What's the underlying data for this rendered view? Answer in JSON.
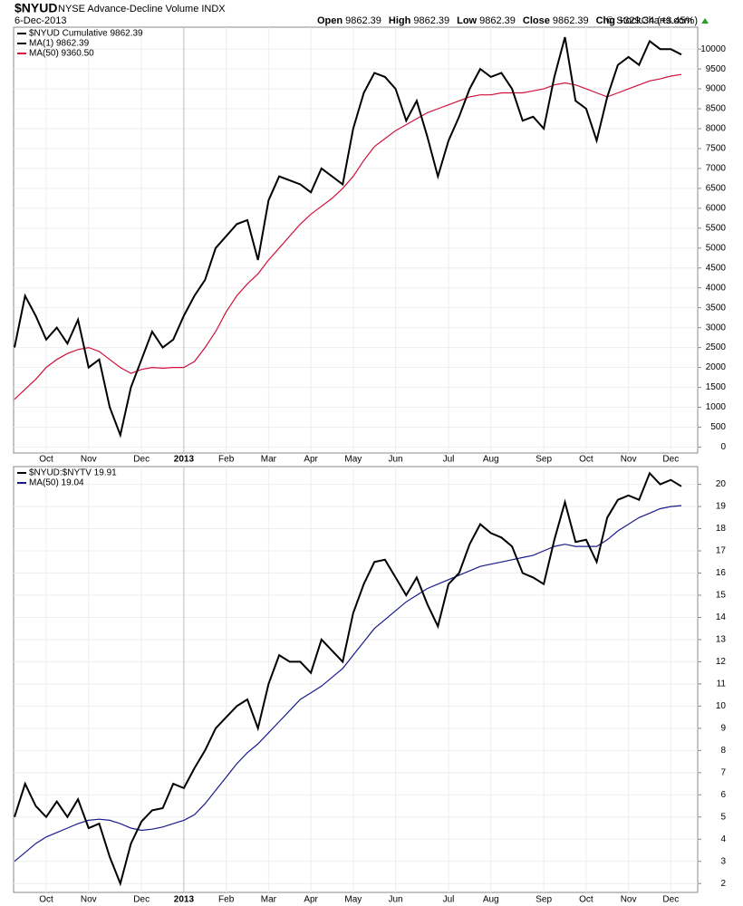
{
  "header": {
    "symbol": "$NYUD",
    "description": "NYSE Advance-Decline Volume INDX",
    "date": "6-Dec-2013",
    "credit": "© StockCharts.com",
    "quote": [
      {
        "label": "Open",
        "value": "9862.39"
      },
      {
        "label": "High",
        "value": "9862.39"
      },
      {
        "label": "Low",
        "value": "9862.39"
      },
      {
        "label": "Close",
        "value": "9862.39"
      },
      {
        "label": "Chg",
        "value": "+329.34 (+3.45%)"
      }
    ]
  },
  "chart_data": [
    {
      "type": "line",
      "categories": [
        null,
        null,
        null,
        "Oct",
        null,
        null,
        null,
        "Nov",
        null,
        null,
        null,
        null,
        "Dec",
        null,
        null,
        null,
        "2013",
        null,
        null,
        null,
        "Feb",
        null,
        null,
        null,
        "Mar",
        null,
        null,
        null,
        "Apr",
        null,
        null,
        null,
        "May",
        null,
        null,
        null,
        "Jun",
        null,
        null,
        null,
        null,
        "Jul",
        null,
        null,
        null,
        "Aug",
        null,
        null,
        null,
        null,
        "Sep",
        null,
        null,
        null,
        "Oct",
        null,
        null,
        null,
        "Nov",
        null,
        null,
        null,
        "Dec",
        null
      ],
      "series": [
        {
          "name": "$NYUD  Cumulative 9862.39",
          "color": "#000000",
          "values": [
            2500,
            3800,
            3300,
            2700,
            3000,
            2600,
            3200,
            2000,
            2200,
            1000,
            300,
            1500,
            2200,
            2900,
            2500,
            2700,
            3300,
            3800,
            4200,
            5000,
            5300,
            5600,
            5700,
            4700,
            6200,
            6800,
            6700,
            6600,
            6400,
            7000,
            6800,
            6600,
            8000,
            8900,
            9400,
            9300,
            9000,
            8200,
            8700,
            7800,
            6800,
            7700,
            8300,
            9000,
            9500,
            9300,
            9400,
            9000,
            8200,
            8300,
            8000,
            9300,
            10300,
            8700,
            8500,
            7700,
            8800,
            9600,
            9800,
            9600,
            10200,
            10000,
            10000,
            9862.39
          ]
        },
        {
          "name": "MA(50) 9360.50",
          "color": "#d0103a",
          "values": [
            1200,
            1450,
            1700,
            2000,
            2200,
            2350,
            2450,
            2500,
            2400,
            2200,
            2000,
            1850,
            1950,
            2000,
            1980,
            2000,
            2000,
            2150,
            2500,
            2900,
            3400,
            3800,
            4100,
            4350,
            4700,
            5000,
            5300,
            5600,
            5850,
            6050,
            6250,
            6500,
            6800,
            7200,
            7550,
            7750,
            7950,
            8100,
            8250,
            8400,
            8500,
            8600,
            8700,
            8800,
            8850,
            8850,
            8900,
            8900,
            8900,
            8950,
            9000,
            9100,
            9150,
            9100,
            9000,
            8900,
            8800,
            8900,
            9000,
            9100,
            9200,
            9250,
            9320,
            9360.5
          ]
        }
      ],
      "annotations": [
        {
          "text": "MA(1) 9862.39",
          "color": "#000000"
        }
      ],
      "ylim": [
        -150,
        10550
      ],
      "yticks": [
        0,
        500,
        1000,
        1500,
        2000,
        2500,
        3000,
        3500,
        4000,
        4500,
        5000,
        5500,
        6000,
        6500,
        7000,
        7500,
        8000,
        8500,
        9000,
        9500,
        10000
      ],
      "grid": true
    },
    {
      "type": "line",
      "categories": [
        null,
        null,
        null,
        "Oct",
        null,
        null,
        null,
        "Nov",
        null,
        null,
        null,
        null,
        "Dec",
        null,
        null,
        null,
        "2013",
        null,
        null,
        null,
        "Feb",
        null,
        null,
        null,
        "Mar",
        null,
        null,
        null,
        "Apr",
        null,
        null,
        null,
        "May",
        null,
        null,
        null,
        "Jun",
        null,
        null,
        null,
        null,
        "Jul",
        null,
        null,
        null,
        "Aug",
        null,
        null,
        null,
        null,
        "Sep",
        null,
        null,
        null,
        "Oct",
        null,
        null,
        null,
        "Nov",
        null,
        null,
        null,
        "Dec",
        null
      ],
      "series": [
        {
          "name": "$NYUD:$NYTV  19.91",
          "color": "#000000",
          "values": [
            5,
            6.5,
            5.5,
            5,
            5.7,
            5,
            5.8,
            4.5,
            4.7,
            3.2,
            2,
            3.8,
            4.8,
            5.3,
            5.4,
            6.5,
            6.3,
            7.2,
            8.0,
            9.0,
            9.5,
            10.0,
            10.3,
            9.0,
            11.0,
            12.3,
            12.0,
            12.0,
            11.5,
            13.0,
            12.5,
            12.0,
            14.2,
            15.5,
            16.5,
            16.6,
            15.8,
            15.0,
            15.8,
            14.6,
            13.6,
            15.5,
            16.0,
            17.3,
            18.2,
            17.8,
            17.6,
            17.2,
            16.0,
            15.8,
            15.5,
            17.5,
            19.2,
            17.4,
            17.5,
            16.5,
            18.5,
            19.3,
            19.5,
            19.3,
            20.5,
            20.0,
            20.2,
            19.91
          ]
        },
        {
          "name": "MA(50) 19.04",
          "color": "#1a1a8c",
          "values": [
            3,
            3.4,
            3.8,
            4.1,
            4.3,
            4.5,
            4.7,
            4.85,
            4.9,
            4.85,
            4.7,
            4.5,
            4.4,
            4.45,
            4.55,
            4.7,
            4.85,
            5.1,
            5.6,
            6.2,
            6.8,
            7.4,
            7.9,
            8.3,
            8.8,
            9.3,
            9.8,
            10.3,
            10.6,
            10.9,
            11.3,
            11.7,
            12.3,
            12.9,
            13.5,
            13.9,
            14.3,
            14.7,
            15.0,
            15.3,
            15.5,
            15.7,
            15.9,
            16.1,
            16.3,
            16.4,
            16.5,
            16.6,
            16.7,
            16.8,
            17.0,
            17.2,
            17.3,
            17.2,
            17.2,
            17.2,
            17.5,
            17.9,
            18.2,
            18.5,
            18.7,
            18.9,
            19.0,
            19.04
          ]
        }
      ],
      "ylim": [
        1.6,
        20.8
      ],
      "yticks": [
        2,
        3,
        4,
        5,
        6,
        7,
        8,
        9,
        10,
        11,
        12,
        13,
        14,
        15,
        16,
        17,
        18,
        19,
        20
      ],
      "grid": true
    }
  ]
}
